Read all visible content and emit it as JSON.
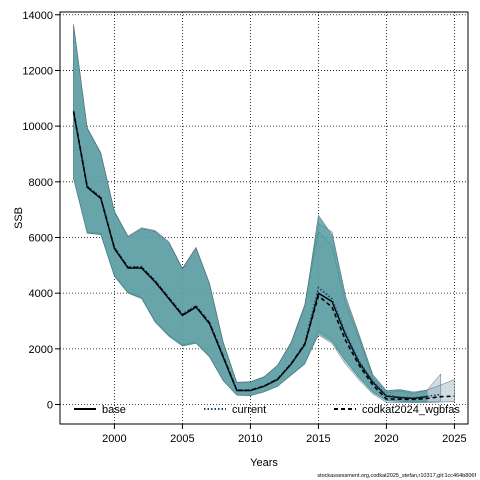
{
  "chart_data": {
    "type": "line",
    "xlabel": "Years",
    "ylabel": "SSB",
    "xlim": [
      1996,
      2026
    ],
    "ylim": [
      -700,
      14100
    ],
    "x_ticks": [
      2000,
      2005,
      2010,
      2015,
      2020,
      2025
    ],
    "y_ticks": [
      0,
      2000,
      4000,
      6000,
      8000,
      10000,
      12000,
      14000
    ],
    "grid": true,
    "legend_position": "bottom",
    "footer": "stockassessment.org,codkat2025_stefan,r10317,git:1cc464b806f",
    "band_color": "#7B9CB0",
    "band_fill_opacity": 0.72,
    "series": [
      {
        "name": "base",
        "line_color": "#000000",
        "line_style": "solid",
        "x": [
          1997,
          1998,
          1999,
          2000,
          2001,
          2002,
          2003,
          2004,
          2005,
          2006,
          2007,
          2008,
          2009,
          2010,
          2011,
          2012,
          2013,
          2014,
          2015,
          2016,
          2017,
          2018,
          2019,
          2020,
          2021,
          2022,
          2023
        ],
        "values": [
          10500,
          7800,
          7400,
          5600,
          4900,
          4900,
          4400,
          3800,
          3200,
          3500,
          2900,
          1700,
          500,
          500,
          650,
          900,
          1450,
          2150,
          4000,
          3700,
          2500,
          1500,
          800,
          300,
          250,
          220,
          280
        ],
        "lower": [
          8100,
          6150,
          6100,
          4600,
          4000,
          3800,
          2950,
          2450,
          2100,
          2200,
          1700,
          850,
          330,
          320,
          450,
          650,
          1050,
          1450,
          2550,
          2250,
          1550,
          950,
          430,
          140,
          110,
          90,
          100
        ],
        "upper": [
          13600,
          9900,
          9000,
          6900,
          6000,
          6300,
          6200,
          5800,
          4850,
          5600,
          4300,
          2200,
          780,
          800,
          980,
          1400,
          2200,
          3500,
          6800,
          6100,
          3800,
          2450,
          1050,
          480,
          520,
          420,
          500
        ]
      },
      {
        "name": "current",
        "line_color": "#1F3F6F",
        "line_style": "dotted",
        "x": [
          1997,
          1998,
          1999,
          2000,
          2001,
          2002,
          2003,
          2004,
          2005,
          2006,
          2007,
          2008,
          2009,
          2010,
          2011,
          2012,
          2013,
          2014,
          2015,
          2016,
          2017,
          2018,
          2019,
          2020,
          2021,
          2022,
          2023,
          2024
        ],
        "values": [
          10550,
          7850,
          7450,
          5650,
          4950,
          4950,
          4450,
          3850,
          3250,
          3550,
          2950,
          1750,
          520,
          520,
          670,
          920,
          1480,
          2200,
          4200,
          3800,
          2550,
          1550,
          830,
          330,
          270,
          240,
          300,
          360
        ],
        "lower": [
          8150,
          6200,
          6150,
          4650,
          4050,
          3850,
          3000,
          2500,
          2150,
          2250,
          1750,
          880,
          340,
          330,
          460,
          660,
          1080,
          1500,
          2650,
          2350,
          1600,
          980,
          450,
          150,
          120,
          100,
          110,
          120
        ],
        "upper": [
          13650,
          9950,
          9050,
          6950,
          6050,
          6350,
          6250,
          5850,
          4900,
          5650,
          4350,
          2250,
          800,
          820,
          1000,
          1420,
          2250,
          3600,
          6500,
          6200,
          3900,
          2500,
          1080,
          500,
          540,
          450,
          520,
          1100
        ]
      },
      {
        "name": "codkat2024_wgbfas",
        "line_color": "#000000",
        "line_style": "dashed",
        "x": [
          1997,
          1998,
          1999,
          2000,
          2001,
          2002,
          2003,
          2004,
          2005,
          2006,
          2007,
          2008,
          2009,
          2010,
          2011,
          2012,
          2013,
          2014,
          2015,
          2016,
          2017,
          2018,
          2019,
          2020,
          2021,
          2022,
          2023,
          2024,
          2025
        ],
        "values": [
          10520,
          7820,
          7420,
          5620,
          4920,
          4920,
          4420,
          3820,
          3220,
          3520,
          2920,
          1720,
          510,
          510,
          660,
          910,
          1460,
          2170,
          3900,
          3500,
          2300,
          1400,
          700,
          200,
          190,
          180,
          220,
          280,
          300
        ],
        "lower": [
          8120,
          6170,
          6120,
          4620,
          4020,
          3820,
          2970,
          2470,
          2120,
          2220,
          1720,
          860,
          335,
          325,
          455,
          655,
          1060,
          1470,
          2500,
          2200,
          1450,
          880,
          380,
          80,
          70,
          60,
          70,
          90,
          100
        ],
        "upper": [
          13620,
          9920,
          9020,
          6920,
          6020,
          6320,
          6220,
          5820,
          4870,
          5620,
          4320,
          2220,
          790,
          810,
          990,
          1410,
          2220,
          3550,
          6200,
          5700,
          3600,
          2350,
          950,
          420,
          480,
          400,
          520,
          700,
          900
        ]
      }
    ]
  }
}
